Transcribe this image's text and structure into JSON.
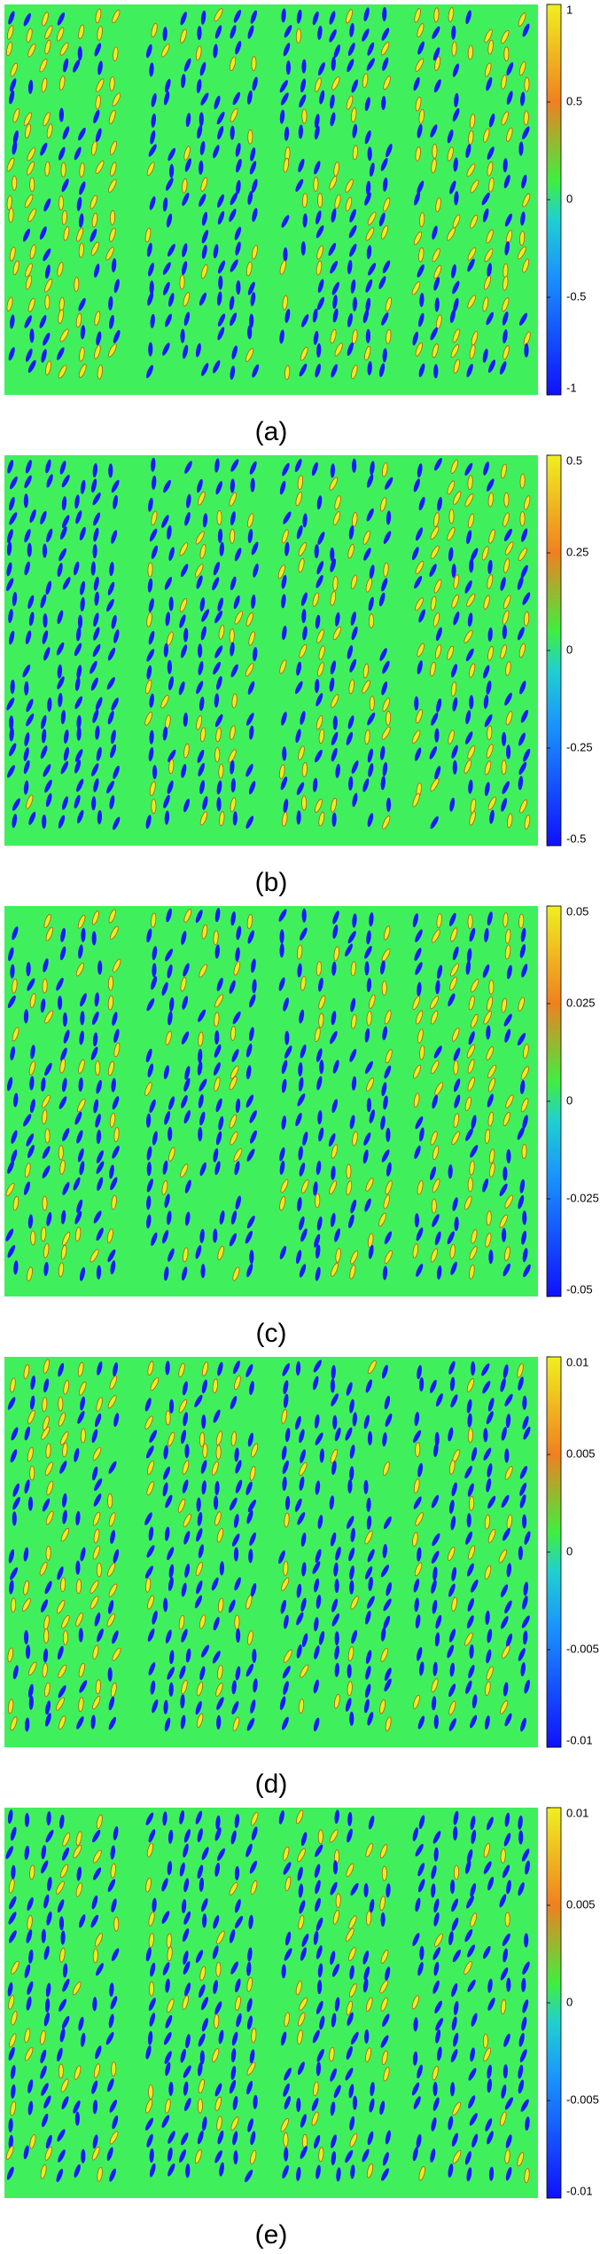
{
  "panels": [
    {
      "label": "(a)",
      "colorbar": {
        "ticks": [
          1,
          0.5,
          0,
          -0.5,
          -1
        ]
      }
    },
    {
      "label": "(b)",
      "colorbar": {
        "ticks": [
          0.5,
          0.25,
          0,
          -0.25,
          -0.5
        ]
      }
    },
    {
      "label": "(c)",
      "colorbar": {
        "ticks": [
          0.05,
          0.025,
          0,
          -0.025,
          -0.05
        ]
      }
    },
    {
      "label": "(d)",
      "colorbar": {
        "ticks": [
          0.01,
          0.005,
          0,
          -0.005,
          -0.01
        ]
      }
    },
    {
      "label": "(e)",
      "colorbar": {
        "ticks": [
          0.01,
          0.005,
          0,
          -0.005,
          -0.01
        ]
      }
    }
  ]
}
